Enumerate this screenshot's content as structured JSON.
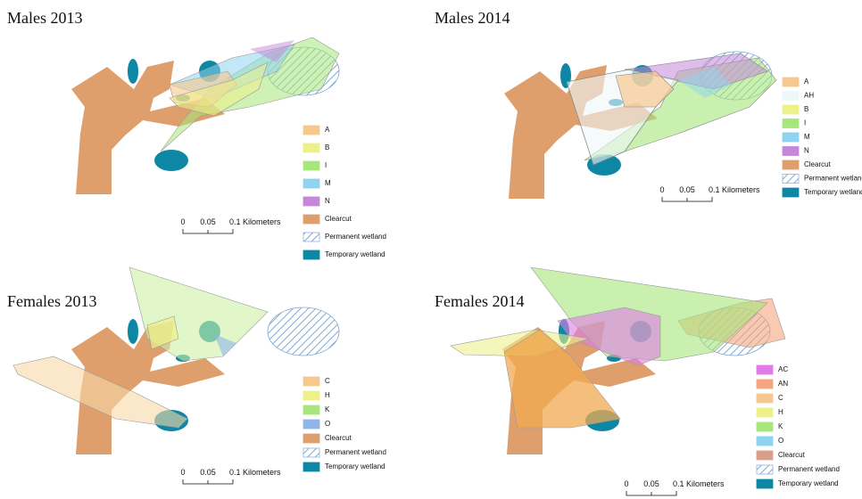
{
  "panels": [
    {
      "title": "Males 2013",
      "legend": [
        {
          "label": "A",
          "color": "#f6c88e"
        },
        {
          "label": "B",
          "color": "#eef08a"
        },
        {
          "label": "I",
          "color": "#a6e67a"
        },
        {
          "label": "M",
          "color": "#8fd3ef"
        },
        {
          "label": "N",
          "color": "#c487d9"
        },
        {
          "label": "Clearcut",
          "color": "#df9f6c"
        },
        {
          "label": "Permanent wetland",
          "color": "#8fb3d9",
          "pattern": "hatch"
        },
        {
          "label": "Temporary wetland",
          "color": "#0d87a3"
        }
      ],
      "scale": [
        "0",
        "0.05",
        "0.1 Kilometers"
      ]
    },
    {
      "title": "Males 2014",
      "legend": [
        {
          "label": "A",
          "color": "#f6c88e"
        },
        {
          "label": "AH",
          "color": "#eef8f8"
        },
        {
          "label": "B",
          "color": "#eef08a"
        },
        {
          "label": "I",
          "color": "#a6e67a"
        },
        {
          "label": "M",
          "color": "#8fd3ef"
        },
        {
          "label": "N",
          "color": "#c487d9"
        },
        {
          "label": "Clearcut",
          "color": "#df9f6c"
        },
        {
          "label": "Permanent wetland",
          "color": "#8fb3d9",
          "pattern": "hatch"
        },
        {
          "label": "Temporary wetland",
          "color": "#0d87a3"
        }
      ],
      "scale": [
        "0",
        "0.05",
        "0.1 Kilometers"
      ]
    },
    {
      "title": "Females 2013",
      "legend": [
        {
          "label": "C",
          "color": "#f6c88e"
        },
        {
          "label": "H",
          "color": "#eef08a"
        },
        {
          "label": "K",
          "color": "#a6e67a"
        },
        {
          "label": "O",
          "color": "#8fb5ea"
        },
        {
          "label": "Clearcut",
          "color": "#df9f6c"
        },
        {
          "label": "Permanent wetland",
          "color": "#8fb3d9",
          "pattern": "hatch"
        },
        {
          "label": "Temporary wetland",
          "color": "#0d87a3"
        }
      ],
      "scale": [
        "0",
        "0.05",
        "0.1 Kilometers"
      ]
    },
    {
      "title": "Females 2014",
      "legend": [
        {
          "label": "AC",
          "color": "#e07be8"
        },
        {
          "label": "AN",
          "color": "#f5a57f"
        },
        {
          "label": "C",
          "color": "#f6c88e"
        },
        {
          "label": "H",
          "color": "#eef08a"
        },
        {
          "label": "K",
          "color": "#a6e67a"
        },
        {
          "label": "O",
          "color": "#8fd3ef"
        },
        {
          "label": "Clearcut",
          "color": "#d9a088"
        },
        {
          "label": "Permanent wetland",
          "color": "#8fb3d9",
          "pattern": "hatch"
        },
        {
          "label": "Temporary wetland",
          "color": "#0d87a3"
        }
      ],
      "scale": [
        "0",
        "0.05",
        "0.1 Kilometers"
      ]
    }
  ]
}
